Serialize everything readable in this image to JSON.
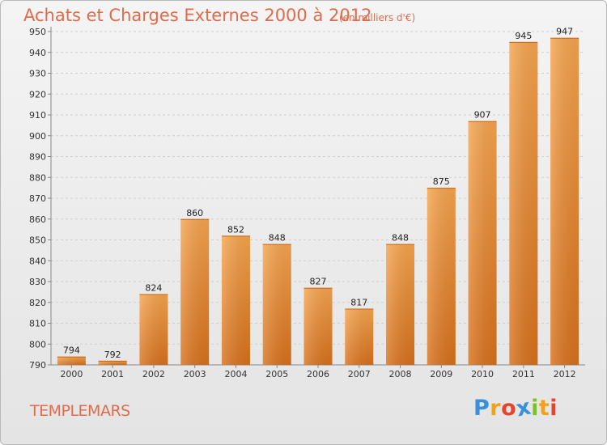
{
  "title": "Achats et Charges Externes 2000 à 2012",
  "subtitle": "(en milliers d'€)",
  "location": "TEMPLEMARS",
  "logo": {
    "letters": [
      "P",
      "r",
      "o",
      "x",
      "i",
      "t",
      "i"
    ],
    "colors": [
      "#3a8fd8",
      "#f2a21a",
      "#e8432d",
      "#3a8fd8",
      "#7cbf2f",
      "#f2a21a",
      "#e8432d"
    ]
  },
  "chart_data": {
    "type": "bar",
    "categories": [
      "2000",
      "2001",
      "2002",
      "2003",
      "2004",
      "2005",
      "2006",
      "2007",
      "2008",
      "2009",
      "2010",
      "2011",
      "2012"
    ],
    "values": [
      794,
      792,
      824,
      860,
      852,
      848,
      827,
      817,
      848,
      875,
      907,
      945,
      947
    ],
    "ylim": [
      790,
      950
    ],
    "yticks": [
      790,
      800,
      810,
      820,
      830,
      840,
      850,
      860,
      870,
      880,
      890,
      900,
      910,
      920,
      930,
      940,
      950
    ],
    "grid": true,
    "bar_color": "#ec8a2e"
  }
}
